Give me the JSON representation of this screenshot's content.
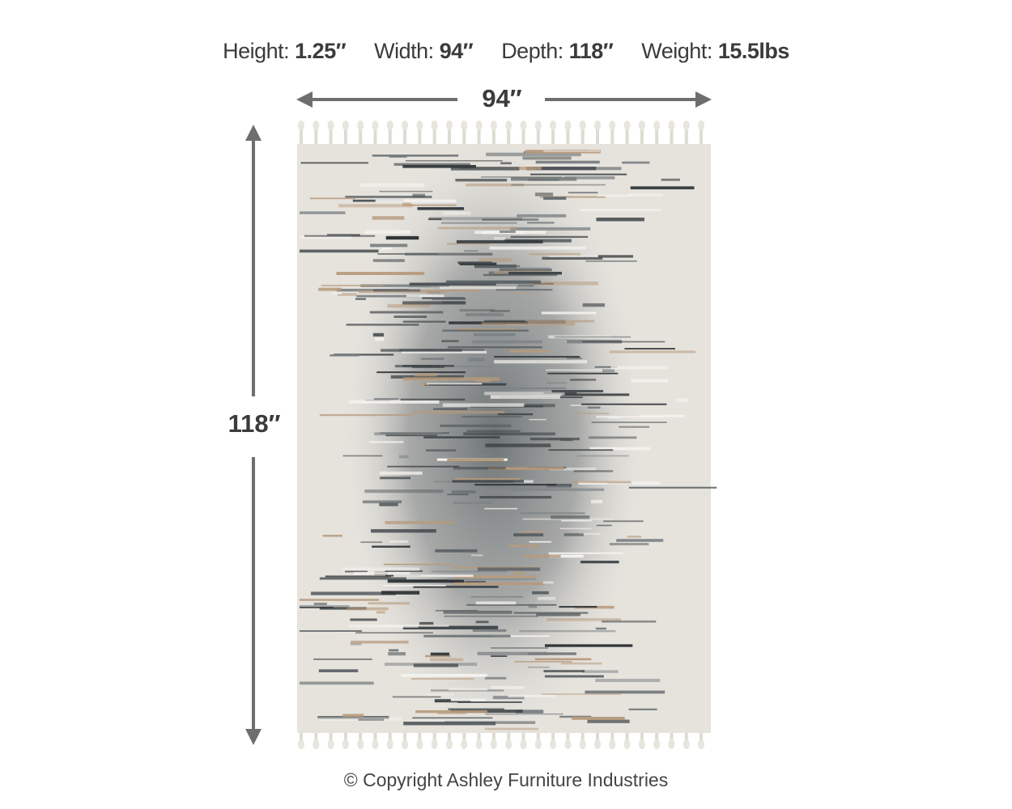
{
  "specs": [
    {
      "label": "Height:",
      "value": "1.25″"
    },
    {
      "label": "Width:",
      "value": "94″"
    },
    {
      "label": "Depth:",
      "value": "118″"
    },
    {
      "label": "Weight:",
      "value": "15.5lbs"
    }
  ],
  "width_dimension": "94″",
  "height_dimension": "118″",
  "copyright": "© Copyright Ashley Furniture Industries",
  "colors": {
    "arrow": "#6e6e6e",
    "text": "#3b3b3b",
    "rug_base": "#e6e3dd",
    "rug_dark": "#4d5356",
    "rug_tan": "#b79a7c"
  }
}
